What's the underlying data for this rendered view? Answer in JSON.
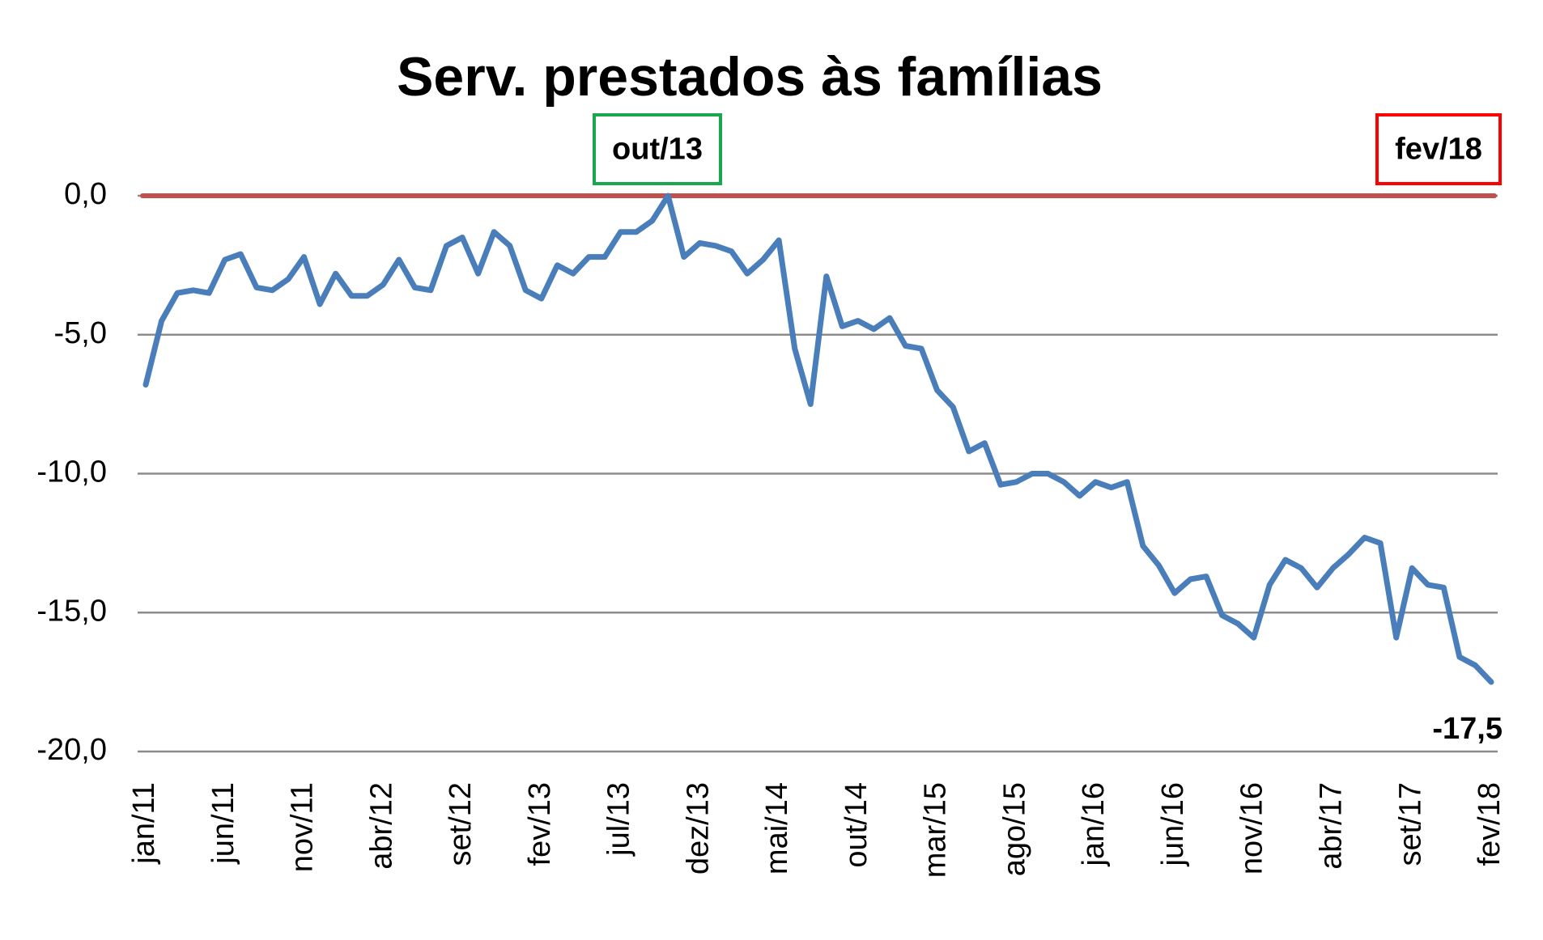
{
  "chart_data": {
    "type": "line",
    "title": "Serv. prestados às famílias",
    "categories": [
      "jan/11",
      null,
      null,
      null,
      null,
      "jun/11",
      null,
      null,
      null,
      null,
      "nov/11",
      null,
      null,
      null,
      null,
      "abr/12",
      null,
      null,
      null,
      null,
      "set/12",
      null,
      null,
      null,
      null,
      "fev/13",
      null,
      null,
      null,
      null,
      "jul/13",
      null,
      null,
      null,
      null,
      "dez/13",
      null,
      null,
      null,
      null,
      "mai/14",
      null,
      null,
      null,
      null,
      "out/14",
      null,
      null,
      null,
      null,
      "mar/15",
      null,
      null,
      null,
      null,
      "ago/15",
      null,
      null,
      null,
      null,
      "jan/16",
      null,
      null,
      null,
      null,
      "jun/16",
      null,
      null,
      null,
      null,
      "nov/16",
      null,
      null,
      null,
      null,
      "abr/17",
      null,
      null,
      null,
      null,
      "set/17",
      null,
      null,
      null,
      null,
      "fev/18"
    ],
    "series": [
      {
        "color": "#4a7ebb",
        "values": [
          -6.8,
          -4.5,
          -3.5,
          -3.4,
          -3.5,
          -2.3,
          -2.1,
          -3.3,
          -3.4,
          -3.0,
          -2.2,
          -3.9,
          -2.8,
          -3.6,
          -3.6,
          -3.2,
          -2.3,
          -3.3,
          -3.4,
          -1.8,
          -1.5,
          -2.8,
          -1.3,
          -1.8,
          -3.4,
          -3.7,
          -2.5,
          -2.8,
          -2.2,
          -2.2,
          -1.3,
          -1.3,
          -0.9,
          0.0,
          -2.2,
          -1.7,
          -1.8,
          -2.0,
          -2.8,
          -2.3,
          -1.6,
          -5.5,
          -7.5,
          -2.9,
          -4.7,
          -4.5,
          -4.8,
          -4.4,
          -5.4,
          -5.5,
          -7.0,
          -7.6,
          -9.2,
          -8.9,
          -10.4,
          -10.3,
          -10.0,
          -10.0,
          -10.3,
          -10.8,
          -10.3,
          -10.5,
          -10.3,
          -12.6,
          -13.3,
          -14.3,
          -13.8,
          -13.7,
          -15.1,
          -15.4,
          -15.9,
          -14.0,
          -13.1,
          -13.4,
          -14.1,
          -13.4,
          -12.9,
          -12.3,
          -12.5,
          -15.9,
          -13.4,
          -14.0,
          -14.1,
          -16.6,
          -16.9,
          -17.5
        ],
        "value_labels": [
          null,
          null,
          null,
          null,
          null,
          null,
          null,
          null,
          null,
          null,
          null,
          null,
          null,
          null,
          null,
          null,
          null,
          null,
          null,
          null,
          null,
          null,
          null,
          null,
          null,
          null,
          null,
          null,
          null,
          null,
          null,
          null,
          null,
          null,
          null,
          null,
          null,
          null,
          null,
          null,
          null,
          null,
          null,
          null,
          null,
          null,
          null,
          null,
          null,
          null,
          null,
          null,
          null,
          null,
          null,
          null,
          null,
          null,
          null,
          null,
          null,
          null,
          null,
          null,
          null,
          null,
          null,
          null,
          null,
          null,
          null,
          null,
          null,
          null,
          null,
          null,
          null,
          null,
          null,
          null,
          null,
          null,
          null,
          null,
          null,
          "-17,5"
        ],
        "value_label_color": "#ff0000"
      }
    ],
    "ylim": [
      -20,
      0
    ],
    "yticks": [
      {
        "value": 0,
        "label": "0,0"
      },
      {
        "value": -5,
        "label": "-5,0"
      },
      {
        "value": -10,
        "label": "-10,0"
      },
      {
        "value": -15,
        "label": "-15,0"
      },
      {
        "value": -20,
        "label": "-20,0"
      }
    ],
    "grid": true,
    "reference_line": {
      "value": 0,
      "color": "#c0504d"
    },
    "annotations": [
      {
        "text": "out/13",
        "color": "#1aa64a"
      },
      {
        "text": "fev/18",
        "color": "#ff0000"
      }
    ]
  }
}
